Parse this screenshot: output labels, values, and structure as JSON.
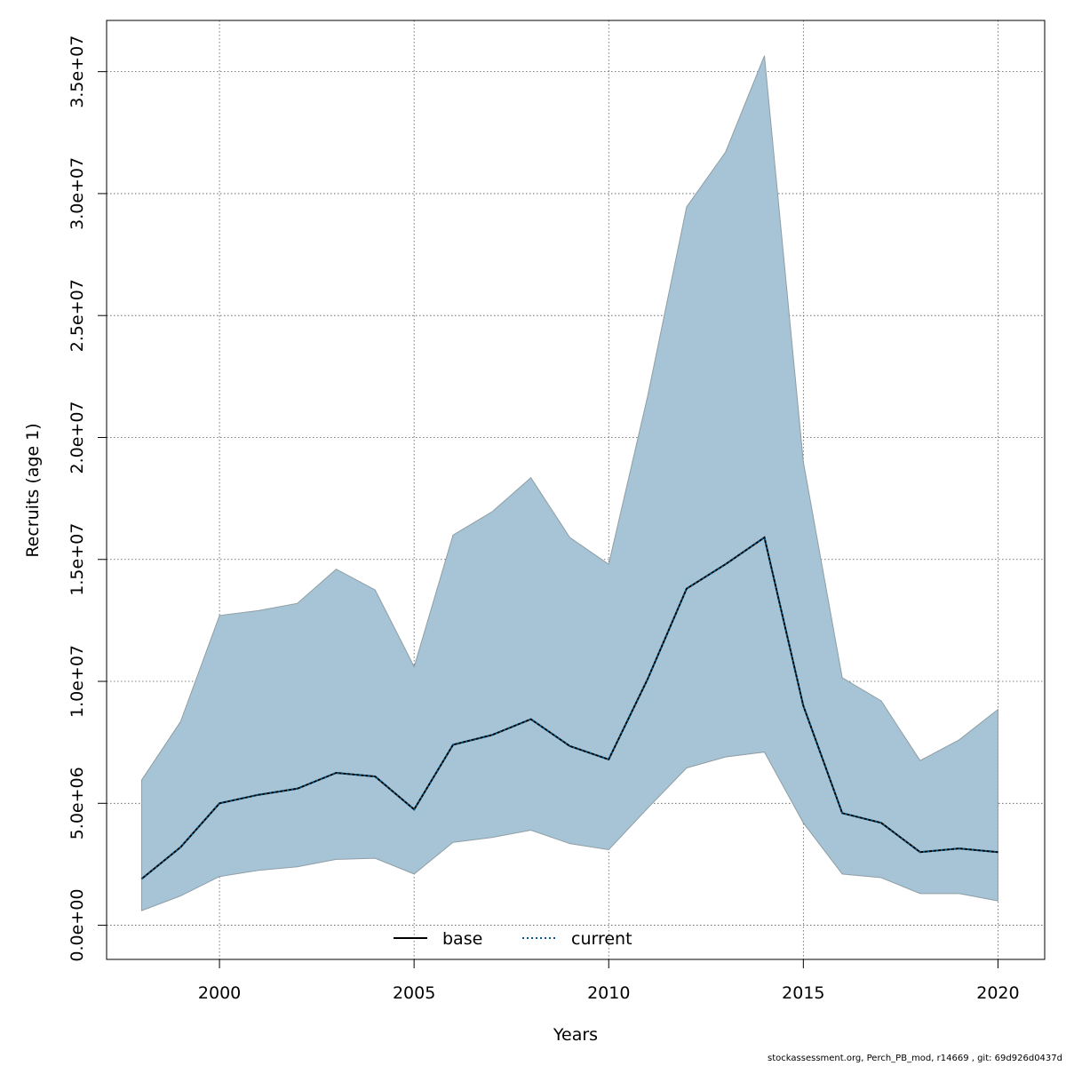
{
  "chart_data": {
    "type": "area",
    "xlabel": "Years",
    "ylabel": "Recruits (age 1)",
    "xlim": [
      1997.1,
      2021.2
    ],
    "ylim": [
      -1400000,
      37100000
    ],
    "x_ticks": [
      2000,
      2005,
      2010,
      2015,
      2020
    ],
    "y_ticks": [
      0,
      5000000,
      10000000,
      15000000,
      20000000,
      25000000,
      30000000,
      35000000
    ],
    "y_tick_labels": [
      "0.0e+00",
      "5.0e+06",
      "1.0e+07",
      "1.5e+07",
      "2.0e+07",
      "2.5e+07",
      "3.0e+07",
      "3.5e+07"
    ],
    "grid": true,
    "legend": {
      "placement": "bottom-center",
      "entries": [
        {
          "name": "base",
          "style": "solid",
          "color": "#000000"
        },
        {
          "name": "current",
          "style": "dotted",
          "color": "#005a8c"
        }
      ]
    },
    "colors": {
      "band": "#a6c4d5",
      "band_edge": "#8f9ea6",
      "base": "#000000",
      "current": "#005a8c"
    },
    "x": [
      1998,
      1999,
      2000,
      2001,
      2002,
      2003,
      2004,
      2005,
      2006,
      2007,
      2008,
      2009,
      2010,
      2011,
      2012,
      2013,
      2014,
      2015,
      2016,
      2017,
      2018,
      2019,
      2020
    ],
    "series": [
      {
        "name": "base",
        "values": [
          1900000,
          3200000,
          5000000,
          5350000,
          5600000,
          6250000,
          6100000,
          4750000,
          7400000,
          7800000,
          8450000,
          7350000,
          6800000,
          10100000,
          13800000,
          14800000,
          15900000,
          9000000,
          4600000,
          4200000,
          3000000,
          3150000,
          3000000
        ]
      },
      {
        "name": "current",
        "values": [
          1900000,
          3200000,
          5000000,
          5350000,
          5600000,
          6250000,
          6100000,
          4750000,
          7400000,
          7800000,
          8450000,
          7350000,
          6800000,
          10100000,
          13800000,
          14800000,
          15900000,
          9000000,
          4600000,
          4200000,
          3000000,
          3150000,
          3000000
        ]
      }
    ],
    "band": {
      "lower": [
        600000,
        1200000,
        2000000,
        2250000,
        2400000,
        2700000,
        2750000,
        2100000,
        3400000,
        3600000,
        3900000,
        3350000,
        3100000,
        4800000,
        6450000,
        6900000,
        7100000,
        4200000,
        2100000,
        1950000,
        1300000,
        1300000,
        1000000
      ],
      "upper": [
        5950000,
        8350000,
        12700000,
        12900000,
        13200000,
        14600000,
        13750000,
        10600000,
        16000000,
        16950000,
        18350000,
        15900000,
        14800000,
        21700000,
        29450000,
        31700000,
        35650000,
        19000000,
        10150000,
        9200000,
        6750000,
        7600000,
        8850000
      ]
    }
  },
  "footer": "stockassessment.org, Perch_PB_mod, r14669 , git: 69d926d0437d"
}
